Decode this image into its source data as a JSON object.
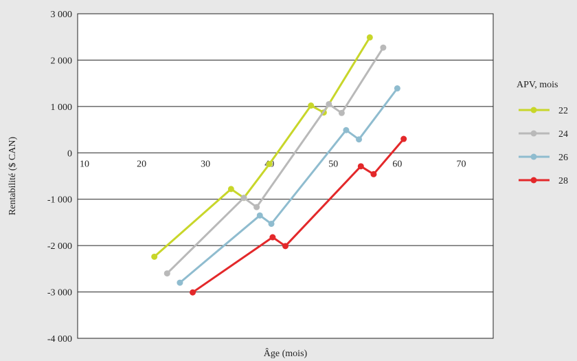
{
  "chart_data": {
    "type": "line",
    "title": "",
    "xlabel": "Âge (mois)",
    "ylabel": "Rentabilité ($ CAN)",
    "xlim": [
      10,
      75
    ],
    "ylim": [
      -4000,
      3000
    ],
    "x_ticks": [
      "10",
      "20",
      "30",
      "40",
      "50",
      "60",
      "70"
    ],
    "y_ticks": [
      "3 000",
      "2 000",
      "1 000",
      "0",
      "-1 000",
      "-2 000",
      "-3 000",
      "-4 000"
    ],
    "grid": "horizontal",
    "legend_title": "APV, mois",
    "legend_position": "right",
    "series": [
      {
        "name": "22",
        "color": "#c8d62a",
        "points": [
          [
            22,
            -2240
          ],
          [
            34,
            -780
          ],
          [
            36,
            -970
          ],
          [
            40,
            -240
          ],
          [
            46.5,
            1020
          ],
          [
            48.5,
            870
          ],
          [
            55.7,
            2490
          ]
        ]
      },
      {
        "name": "24",
        "color": "#b9b9b9",
        "points": [
          [
            24,
            -2600
          ],
          [
            36,
            -970
          ],
          [
            38,
            -1170
          ],
          [
            49.3,
            1050
          ],
          [
            51.3,
            860
          ],
          [
            57.8,
            2270
          ]
        ]
      },
      {
        "name": "26",
        "color": "#8fbccf",
        "points": [
          [
            26,
            -2800
          ],
          [
            38.5,
            -1350
          ],
          [
            40.3,
            -1530
          ],
          [
            52,
            490
          ],
          [
            54,
            290
          ],
          [
            60,
            1390
          ]
        ]
      },
      {
        "name": "28",
        "color": "#e3282a",
        "points": [
          [
            28,
            -3010
          ],
          [
            40.5,
            -1820
          ],
          [
            42.5,
            -2010
          ],
          [
            54.3,
            -290
          ],
          [
            56.3,
            -460
          ],
          [
            61,
            300
          ]
        ]
      }
    ]
  }
}
